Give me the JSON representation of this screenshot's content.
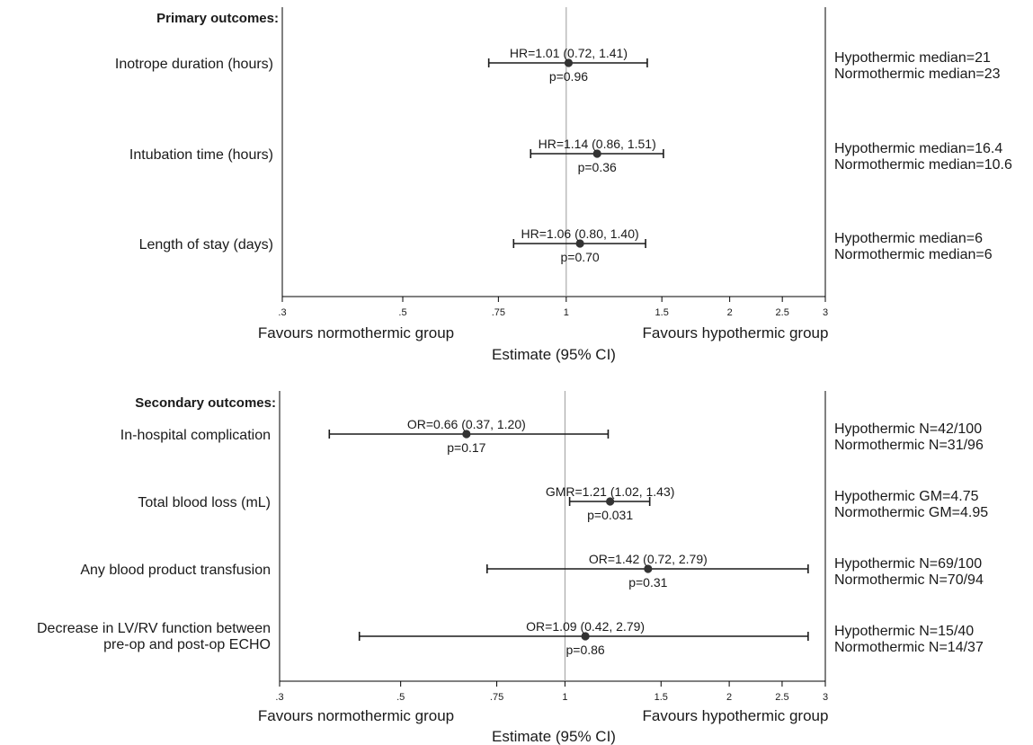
{
  "chart_data": [
    {
      "type": "forest",
      "section_title": "Primary outcomes:",
      "x_scale": "log",
      "xlim": [
        0.3,
        3
      ],
      "reference_line": 1,
      "x_ticks": [
        {
          "value": 0.3,
          "label": ".3"
        },
        {
          "value": 0.5,
          "label": ".5"
        },
        {
          "value": 0.75,
          "label": ".75"
        },
        {
          "value": 1,
          "label": "1"
        },
        {
          "value": 1.5,
          "label": "1.5"
        },
        {
          "value": 2,
          "label": "2"
        },
        {
          "value": 2.5,
          "label": "2.5"
        },
        {
          "value": 3,
          "label": "3"
        }
      ],
      "left_note": "Favours normothermic group",
      "right_note": "Favours hypothermic group",
      "xlabel": "Estimate (95% CI)",
      "rows": [
        {
          "label": [
            "Inotrope duration (hours)"
          ],
          "estimate": 1.01,
          "lower": 0.72,
          "upper": 1.41,
          "estimate_text": "HR=1.01 (0.72, 1.41)",
          "p_text": "p=0.96",
          "right_text": [
            "Hypothermic median=21",
            "Normothermic median=23"
          ]
        },
        {
          "label": [
            "Intubation time (hours)"
          ],
          "estimate": 1.14,
          "lower": 0.86,
          "upper": 1.51,
          "estimate_text": "HR=1.14 (0.86, 1.51)",
          "p_text": "p=0.36",
          "right_text": [
            "Hypothermic median=16.4",
            "Normothermic median=10.6"
          ]
        },
        {
          "label": [
            "Length of stay (days)"
          ],
          "estimate": 1.06,
          "lower": 0.8,
          "upper": 1.4,
          "estimate_text": "HR=1.06 (0.80, 1.40)",
          "p_text": "p=0.70",
          "right_text": [
            "Hypothermic median=6",
            "Normothermic median=6"
          ]
        }
      ]
    },
    {
      "type": "forest",
      "section_title": "Secondary outcomes:",
      "x_scale": "log",
      "xlim": [
        0.3,
        3
      ],
      "reference_line": 1,
      "x_ticks": [
        {
          "value": 0.3,
          "label": ".3"
        },
        {
          "value": 0.5,
          "label": ".5"
        },
        {
          "value": 0.75,
          "label": ".75"
        },
        {
          "value": 1,
          "label": "1"
        },
        {
          "value": 1.5,
          "label": "1.5"
        },
        {
          "value": 2,
          "label": "2"
        },
        {
          "value": 2.5,
          "label": "2.5"
        },
        {
          "value": 3,
          "label": "3"
        }
      ],
      "left_note": "Favours normothermic group",
      "right_note": "Favours hypothermic group",
      "xlabel": "Estimate (95% CI)",
      "rows": [
        {
          "label": [
            "In-hospital complication"
          ],
          "estimate": 0.66,
          "lower": 0.37,
          "upper": 1.2,
          "estimate_text": "OR=0.66 (0.37, 1.20)",
          "p_text": "p=0.17",
          "right_text": [
            "Hypothermic N=42/100",
            "Normothermic N=31/96"
          ]
        },
        {
          "label": [
            "Total blood loss (mL)"
          ],
          "estimate": 1.21,
          "lower": 1.02,
          "upper": 1.43,
          "estimate_text": "GMR=1.21 (1.02, 1.43)",
          "p_text": "p=0.031",
          "right_text": [
            "Hypothermic GM=4.75",
            "Normothermic GM=4.95"
          ]
        },
        {
          "label": [
            "Any blood product transfusion"
          ],
          "estimate": 1.42,
          "lower": 0.72,
          "upper": 2.79,
          "estimate_text": "OR=1.42 (0.72, 2.79)",
          "p_text": "p=0.31",
          "right_text": [
            "Hypothermic N=69/100",
            "Normothermic N=70/94"
          ]
        },
        {
          "label": [
            "Decrease in LV/RV function between",
            "pre-op and post-op ECHO"
          ],
          "estimate": 1.09,
          "lower": 0.42,
          "upper": 2.79,
          "estimate_text": "OR=1.09 (0.42, 2.79)",
          "p_text": "p=0.86",
          "right_text": [
            "Hypothermic N=15/40",
            "Normothermic N=14/37"
          ]
        }
      ]
    }
  ]
}
